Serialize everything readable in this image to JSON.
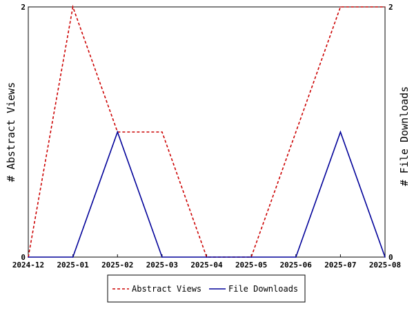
{
  "chart_data": {
    "type": "line",
    "x": [
      "2024-12",
      "2025-01",
      "2025-02",
      "2025-03",
      "2025-04",
      "2025-05",
      "2025-06",
      "2025-07",
      "2025-08"
    ],
    "series": [
      {
        "name": "Abstract Views",
        "axis": "left",
        "color": "#cc0000",
        "style": "dashed",
        "values": [
          0,
          2,
          1,
          1,
          0,
          0,
          1,
          2,
          2
        ]
      },
      {
        "name": "File Downloads",
        "axis": "right",
        "color": "#000099",
        "style": "solid",
        "values": [
          0,
          0,
          1,
          0,
          0,
          0,
          0,
          1,
          0
        ]
      }
    ],
    "ylabel_left": "# Abstract Views",
    "ylabel_right": "# File Downloads",
    "ylim_left": [
      0,
      2
    ],
    "ylim_right": [
      0,
      2
    ],
    "y_ticks_left": [
      "0",
      "2"
    ],
    "y_ticks_right": [
      "0",
      "2"
    ],
    "grid": false,
    "legend_position": "bottom-center"
  }
}
